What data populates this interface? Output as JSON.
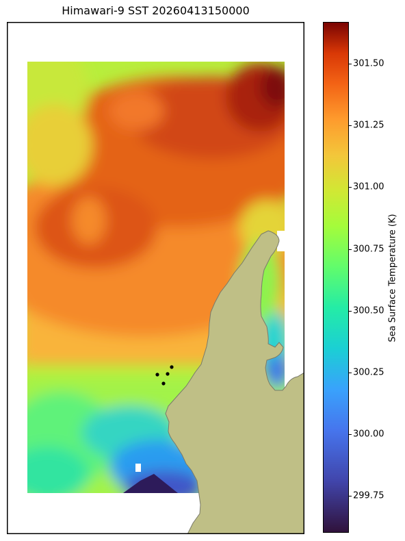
{
  "title": "Himawari-9 SST 20260413150000",
  "colorbar": {
    "label": "Sea Surface Temperature (K)",
    "range": [
      299.6,
      301.67
    ],
    "ticks": [
      "299.75",
      "300.00",
      "300.25",
      "300.50",
      "300.75",
      "301.00",
      "301.25",
      "301.50"
    ],
    "colormap": "turbo"
  },
  "map": {
    "land_color": "#bfbf86",
    "land_edge_color": "#7a7a6a",
    "marker_color": "#000000",
    "marker_count": 4
  }
}
